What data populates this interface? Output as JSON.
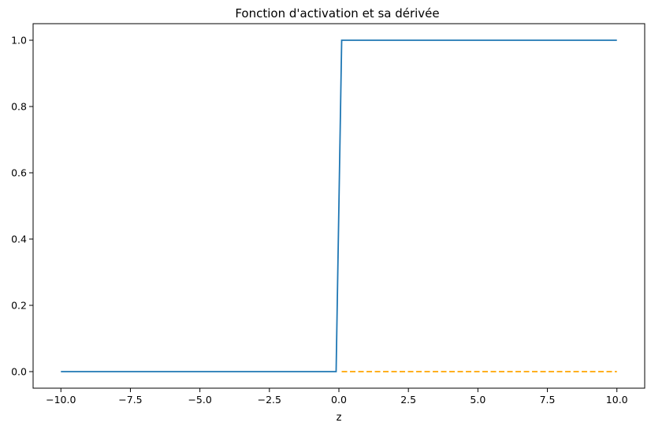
{
  "chart_data": {
    "type": "line",
    "title": "Fonction d'activation et sa dérivée",
    "xlabel": "z",
    "ylabel": "",
    "xlim": [
      -11.0,
      11.0
    ],
    "ylim": [
      -0.05,
      1.05
    ],
    "grid": false,
    "legend": "none",
    "x_ticks": [
      "−10.0",
      "−7.5",
      "−5.0",
      "−2.5",
      "0.0",
      "2.5",
      "5.0",
      "7.5",
      "10.0"
    ],
    "x_tick_values": [
      -10,
      -7.5,
      -5,
      -2.5,
      0,
      2.5,
      5,
      7.5,
      10
    ],
    "y_ticks": [
      "0.0",
      "0.2",
      "0.4",
      "0.6",
      "0.8",
      "1.0"
    ],
    "y_tick_values": [
      0,
      0.2,
      0.4,
      0.6,
      0.8,
      1.0
    ],
    "series": [
      {
        "color": "#1f77b4",
        "style": "solid",
        "x": [
          -10,
          -0.1,
          0.1,
          10
        ],
        "y": [
          0,
          0,
          1,
          1
        ]
      },
      {
        "color": "#ffa500",
        "style": "dashed",
        "x": [
          0.1,
          10
        ],
        "y": [
          0,
          0
        ]
      }
    ]
  }
}
